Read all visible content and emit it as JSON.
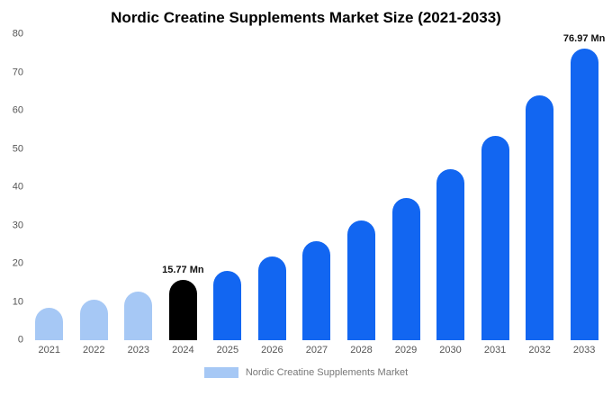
{
  "chart_data": {
    "type": "bar",
    "title": "Nordic Creatine Supplements Market Size (2021-2033)",
    "legend": "Nordic Creatine Supplements Market",
    "xlabel": "",
    "ylabel": "",
    "ylim": [
      0,
      80
    ],
    "yticks": [
      0,
      10,
      20,
      30,
      40,
      50,
      60,
      70,
      80
    ],
    "grid": false,
    "legend_position": "bottom",
    "categories": [
      "2021",
      "2022",
      "2023",
      "2024",
      "2025",
      "2026",
      "2027",
      "2028",
      "2029",
      "2030",
      "2031",
      "2032",
      "2033"
    ],
    "values": [
      8.5,
      10.6,
      12.6,
      15.77,
      18.2,
      21.8,
      26.0,
      31.2,
      37.2,
      44.6,
      53.5,
      64.0,
      76.97
    ],
    "points": [
      {
        "year": "2021",
        "value": 8.5,
        "color": "#a6c8f5",
        "label": ""
      },
      {
        "year": "2022",
        "value": 10.6,
        "color": "#a6c8f5",
        "label": ""
      },
      {
        "year": "2023",
        "value": 12.6,
        "color": "#a6c8f5",
        "label": ""
      },
      {
        "year": "2024",
        "value": 15.77,
        "color": "#000000",
        "label": "15.77 Mn"
      },
      {
        "year": "2025",
        "value": 18.2,
        "color": "#1266f1",
        "label": ""
      },
      {
        "year": "2026",
        "value": 21.8,
        "color": "#1266f1",
        "label": ""
      },
      {
        "year": "2027",
        "value": 26.0,
        "color": "#1266f1",
        "label": ""
      },
      {
        "year": "2028",
        "value": 31.2,
        "color": "#1266f1",
        "label": ""
      },
      {
        "year": "2029",
        "value": 37.2,
        "color": "#1266f1",
        "label": ""
      },
      {
        "year": "2030",
        "value": 44.6,
        "color": "#1266f1",
        "label": ""
      },
      {
        "year": "2031",
        "value": 53.5,
        "color": "#1266f1",
        "label": ""
      },
      {
        "year": "2032",
        "value": 64.0,
        "color": "#1266f1",
        "label": ""
      },
      {
        "year": "2033",
        "value": 76.97,
        "color": "#1266f1",
        "label": "76.97 Mn"
      }
    ],
    "colors": {
      "light_blue": "#a6c8f5",
      "primary_blue": "#1266f1",
      "highlight_black": "#000000"
    }
  }
}
